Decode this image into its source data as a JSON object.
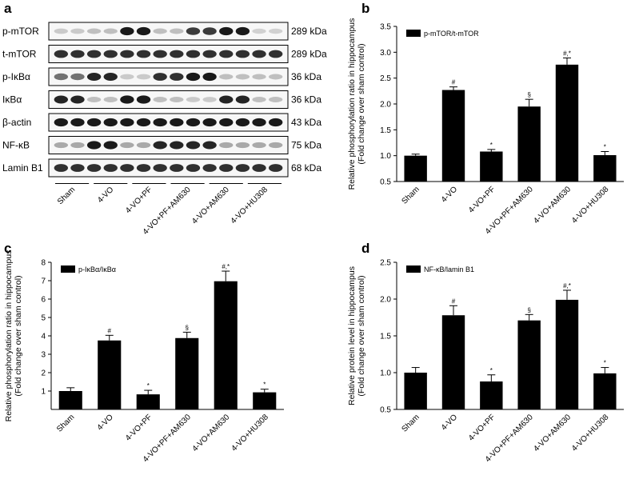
{
  "panel_labels": [
    "a",
    "b",
    "c",
    "d"
  ],
  "blot": {
    "lanes": [
      "Sham",
      "4-VO",
      "4-VO+PF",
      "4-VO+PF+AM630",
      "4-VO+AM630",
      "4-VO+HU308"
    ],
    "rows": [
      {
        "protein": "p-mTOR",
        "kda": "289 kDa",
        "intensity": [
          0.15,
          0.15,
          0.2,
          0.2,
          0.95,
          0.95,
          0.2,
          0.2,
          0.8,
          0.8,
          0.95,
          0.95,
          0.12,
          0.12
        ]
      },
      {
        "protein": "t-mTOR",
        "kda": "289 kDa",
        "intensity": [
          0.85,
          0.85,
          0.85,
          0.85,
          0.85,
          0.85,
          0.85,
          0.85,
          0.85,
          0.85,
          0.85,
          0.85,
          0.85,
          0.85
        ]
      },
      {
        "protein": "p-IκBα",
        "kda": "36 kDa",
        "intensity": [
          0.55,
          0.55,
          0.9,
          0.9,
          0.15,
          0.15,
          0.85,
          0.85,
          0.95,
          0.95,
          0.2,
          0.2,
          0.2,
          0.2
        ]
      },
      {
        "protein": "IκBα",
        "kda": "36 kDa",
        "intensity": [
          0.9,
          0.9,
          0.2,
          0.2,
          0.95,
          0.95,
          0.2,
          0.2,
          0.15,
          0.15,
          0.9,
          0.9,
          0.2,
          0.2
        ]
      },
      {
        "protein": "β-actin",
        "kda": "43 kDa",
        "intensity": [
          0.95,
          0.95,
          0.95,
          0.95,
          0.95,
          0.95,
          0.95,
          0.95,
          0.95,
          0.95,
          0.95,
          0.95,
          0.95,
          0.95
        ]
      },
      {
        "protein": "NF-κB",
        "kda": "75 kDa",
        "intensity": [
          0.3,
          0.3,
          0.95,
          0.95,
          0.3,
          0.3,
          0.9,
          0.9,
          0.9,
          0.9,
          0.3,
          0.3,
          0.3,
          0.3
        ]
      },
      {
        "protein": "Lamin B1",
        "kda": "68 kDa",
        "intensity": [
          0.85,
          0.85,
          0.85,
          0.85,
          0.85,
          0.85,
          0.85,
          0.85,
          0.85,
          0.85,
          0.85,
          0.85,
          0.85,
          0.85
        ]
      }
    ]
  },
  "chart_data": [
    {
      "panel": "b",
      "type": "bar",
      "categories": [
        "Sham",
        "4-VO",
        "4-VO+PF",
        "4-VO+PF+AM630",
        "4-VO+AM630",
        "4-VO+HU308"
      ],
      "series": [
        {
          "name": "p-mTOR/t-mTOR",
          "values": [
            1.0,
            2.27,
            1.08,
            1.95,
            2.76,
            1.01
          ],
          "errors": [
            0.03,
            0.06,
            0.04,
            0.14,
            0.13,
            0.07
          ],
          "annotations": [
            "",
            "#",
            "*",
            "§",
            "#,*",
            "*"
          ]
        }
      ],
      "ylabel": [
        "Relative phosphorylation ratio in hippocampus",
        "(Fold change over sham control)"
      ],
      "ylim": [
        0.5,
        3.5
      ],
      "yticks": [
        0.5,
        1.0,
        1.5,
        2.0,
        2.5,
        3.0,
        3.5
      ],
      "ytick_labels": [
        "0.5",
        "1.0",
        "1.5",
        "2.0",
        "2.5",
        "3.0",
        "3.5"
      ],
      "legend": "top-left",
      "grid": false
    },
    {
      "panel": "c",
      "type": "bar",
      "categories": [
        "Sham",
        "4-VO",
        "4-VO+PF",
        "4-VO+PF+AM630",
        "4-VO+AM630",
        "4-VO+HU308"
      ],
      "series": [
        {
          "name": "p-IκBα/IκBα",
          "values": [
            1.0,
            3.75,
            0.82,
            3.88,
            6.97,
            0.93
          ],
          "errors": [
            0.18,
            0.28,
            0.22,
            0.32,
            0.55,
            0.17
          ],
          "annotations": [
            "",
            "#",
            "*",
            "§",
            "#,*",
            "*"
          ]
        }
      ],
      "ylabel": [
        "Relative phosphorylation ratio in hippocampus",
        "(Fold change over sham control)"
      ],
      "ylim": [
        0,
        8
      ],
      "yticks": [
        1,
        2,
        3,
        4,
        5,
        6,
        7,
        8
      ],
      "ytick_labels": [
        "1",
        "2",
        "3",
        "4",
        "5",
        "6",
        "7",
        "8"
      ],
      "legend": "top-left",
      "grid": false
    },
    {
      "panel": "d",
      "type": "bar",
      "categories": [
        "Sham",
        "4-VO",
        "4-VO+PF",
        "4-VO+PF+AM630",
        "4-VO+AM630",
        "4-VO+HU308"
      ],
      "series": [
        {
          "name": "NF-κB/lamin B1",
          "values": [
            1.0,
            1.78,
            0.88,
            1.71,
            1.99,
            0.99
          ],
          "errors": [
            0.07,
            0.13,
            0.09,
            0.08,
            0.13,
            0.08
          ],
          "annotations": [
            "",
            "#",
            "*",
            "§",
            "#,*",
            "*"
          ]
        }
      ],
      "ylabel": [
        "Relative protein level in hippocampus",
        "(Fold change over sham control)"
      ],
      "ylim": [
        0.5,
        2.5
      ],
      "yticks": [
        0.5,
        1.0,
        1.5,
        2.0,
        2.5
      ],
      "ytick_labels": [
        "0.5",
        "1.0",
        "1.5",
        "2.0",
        "2.5"
      ],
      "legend": "top-left",
      "grid": false
    }
  ]
}
